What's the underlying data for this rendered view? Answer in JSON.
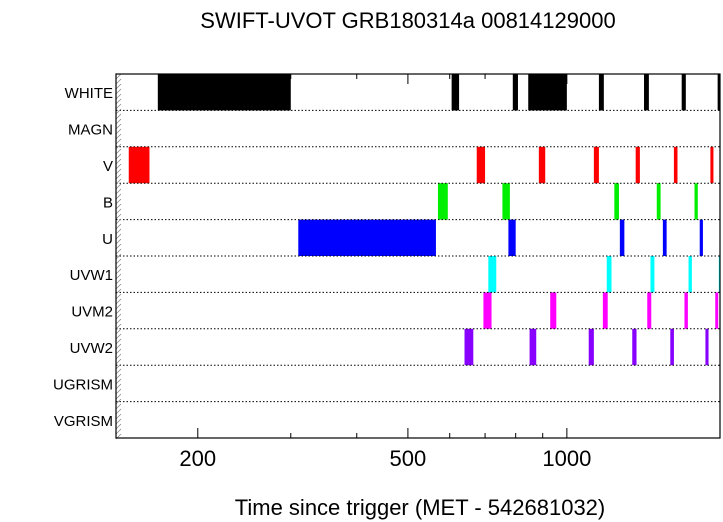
{
  "chart_data": {
    "type": "timeline",
    "title": "SWIFT-UVOT GRB180314a 00814129000",
    "xlabel": "Time since trigger (MET - 542681032)",
    "ylabel": "",
    "xscale": "log",
    "xlim": [
      140,
      1950
    ],
    "xticks": [
      200,
      500,
      1000
    ],
    "xtick_labels": [
      "200",
      "500",
      "1000"
    ],
    "grid": "horizontal-dotted",
    "filters": [
      {
        "name": "WHITE",
        "color": "#000000",
        "segments": [
          [
            168,
            300
          ],
          [
            605,
            625
          ],
          [
            790,
            808
          ],
          [
            845,
            1000
          ],
          [
            1150,
            1175
          ],
          [
            1400,
            1430
          ],
          [
            1650,
            1680
          ],
          [
            1930,
            1950
          ]
        ]
      },
      {
        "name": "MAGN",
        "color": "#000000",
        "segments": []
      },
      {
        "name": "V",
        "color": "#ff0000",
        "segments": [
          [
            148,
            162
          ],
          [
            675,
            700
          ],
          [
            885,
            910
          ],
          [
            1125,
            1150
          ],
          [
            1350,
            1375
          ],
          [
            1595,
            1620
          ],
          [
            1870,
            1895
          ]
        ]
      },
      {
        "name": "B",
        "color": "#00ee00",
        "segments": [
          [
            570,
            595
          ],
          [
            755,
            780
          ],
          [
            1230,
            1255
          ],
          [
            1480,
            1505
          ],
          [
            1745,
            1770
          ],
          [
            1950,
            1975
          ]
        ]
      },
      {
        "name": "U",
        "color": "#0000ff",
        "segments": [
          [
            310,
            565
          ],
          [
            775,
            800
          ],
          [
            1260,
            1285
          ],
          [
            1520,
            1545
          ],
          [
            1785,
            1810
          ],
          [
            1950,
            1975
          ]
        ]
      },
      {
        "name": "UVW1",
        "color": "#00ffff",
        "segments": [
          [
            710,
            735
          ],
          [
            1190,
            1215
          ],
          [
            1440,
            1465
          ],
          [
            1700,
            1725
          ],
          [
            1940,
            1965
          ]
        ]
      },
      {
        "name": "UVM2",
        "color": "#ff00ff",
        "segments": [
          [
            695,
            720
          ],
          [
            930,
            955
          ],
          [
            1170,
            1195
          ],
          [
            1420,
            1445
          ],
          [
            1670,
            1695
          ],
          [
            1910,
            1935
          ]
        ]
      },
      {
        "name": "UVW2",
        "color": "#8800ff",
        "segments": [
          [
            640,
            665
          ],
          [
            850,
            875
          ],
          [
            1100,
            1125
          ],
          [
            1330,
            1355
          ],
          [
            1570,
            1595
          ],
          [
            1830,
            1855
          ]
        ]
      },
      {
        "name": "UGRISM",
        "color": "#000000",
        "segments": []
      },
      {
        "name": "VGRISM",
        "color": "#000000",
        "segments": []
      }
    ]
  }
}
